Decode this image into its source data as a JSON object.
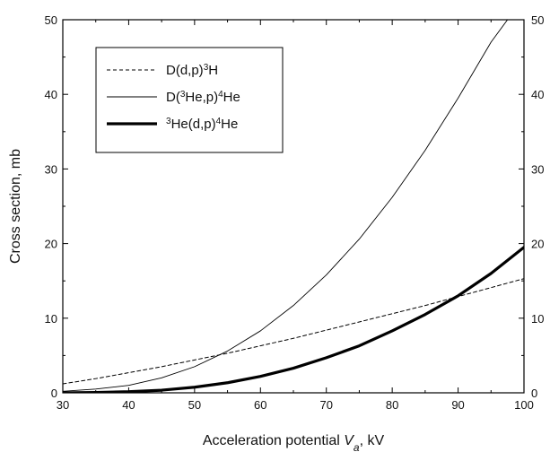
{
  "chart_data": {
    "type": "line",
    "xlabel_prefix": "Acceleration potential ",
    "xlabel_var": "V",
    "xlabel_sub": "a",
    "xlabel_suffix": ", kV",
    "ylabel": "Cross section, mb",
    "xlim": [
      30,
      100
    ],
    "ylim": [
      0,
      50
    ],
    "x_ticks": [
      30,
      40,
      50,
      60,
      70,
      80,
      90,
      100
    ],
    "y_ticks": [
      0,
      10,
      20,
      30,
      40,
      50
    ],
    "legend_position": "top-left",
    "grid": false,
    "series": [
      {
        "name_parts": [
          {
            "t": "D(d,p)",
            "sup": false
          },
          {
            "t": "3",
            "sup": true
          },
          {
            "t": "H",
            "sup": false
          }
        ],
        "style": "dashed",
        "color": "#000000",
        "x": [
          30,
          35,
          40,
          45,
          50,
          55,
          60,
          65,
          70,
          75,
          80,
          85,
          90,
          95,
          100
        ],
        "y": [
          1.2,
          1.9,
          2.7,
          3.5,
          4.4,
          5.3,
          6.3,
          7.3,
          8.4,
          9.5,
          10.6,
          11.7,
          12.9,
          14.1,
          15.3
        ]
      },
      {
        "name_parts": [
          {
            "t": "D(",
            "sup": false
          },
          {
            "t": "3",
            "sup": true
          },
          {
            "t": "He,p)",
            "sup": false
          },
          {
            "t": "4",
            "sup": true
          },
          {
            "t": "He",
            "sup": false
          }
        ],
        "style": "thin",
        "color": "#000000",
        "x": [
          30,
          35,
          40,
          45,
          50,
          55,
          60,
          65,
          70,
          75,
          80,
          85,
          90,
          95,
          97.5
        ],
        "y": [
          0.2,
          0.5,
          1.0,
          2.0,
          3.5,
          5.6,
          8.3,
          11.7,
          15.8,
          20.6,
          26.2,
          32.5,
          39.5,
          47.0,
          50.0
        ]
      },
      {
        "name_parts": [
          {
            "t": "3",
            "sup": true
          },
          {
            "t": "He(d,p)",
            "sup": false
          },
          {
            "t": "4",
            "sup": true
          },
          {
            "t": "He",
            "sup": false
          }
        ],
        "style": "thick",
        "color": "#000000",
        "x": [
          30,
          35,
          40,
          45,
          50,
          55,
          60,
          65,
          70,
          75,
          80,
          85,
          90,
          95,
          100
        ],
        "y": [
          0.0,
          0.05,
          0.15,
          0.35,
          0.75,
          1.35,
          2.2,
          3.3,
          4.7,
          6.3,
          8.3,
          10.5,
          13.0,
          16.0,
          19.5
        ]
      }
    ]
  }
}
